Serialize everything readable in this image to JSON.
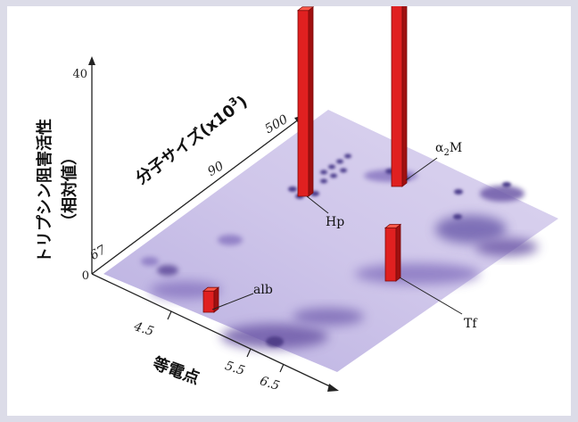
{
  "chart_data": {
    "type": "bar",
    "y_axis": {
      "label_line1": "トリプシン阻害活性",
      "label_line2": "（相対値）",
      "ticks": [
        0,
        40
      ],
      "ylim": [
        0,
        40
      ]
    },
    "size_axis": {
      "label": "分子サイズ(x10",
      "label_exp": "3",
      "label_close": ")",
      "ticks": [
        "67",
        "90",
        "500"
      ]
    },
    "pi_axis": {
      "label": "等電点",
      "ticks": [
        "4.5",
        "5.5",
        "6.5"
      ]
    },
    "bars": [
      {
        "label": "alb",
        "value": 4
      },
      {
        "label": "Hp",
        "value": 35
      },
      {
        "label": "α2M",
        "label_main": "α",
        "label_sub": "2",
        "label_suffix": "M",
        "value": 37
      },
      {
        "label": "Tf",
        "value": 10
      }
    ],
    "colors": {
      "bar_front": "#e02020",
      "bar_side": "#a01010",
      "bar_top": "#ff5a4a",
      "gel": "#c9c0e6",
      "spot": "#6e5aa8"
    }
  }
}
